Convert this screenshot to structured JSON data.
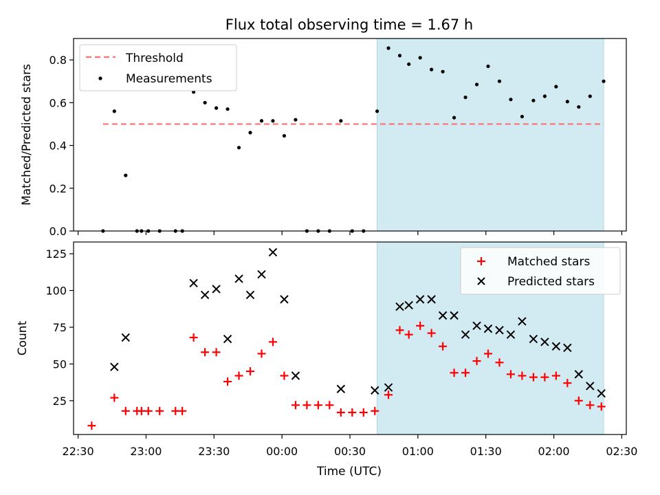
{
  "title": "Flux total observing time = 1.67 h",
  "colors": {
    "threshold": "#ff6f6f",
    "measurement": "#000000",
    "matched": "#ff0000",
    "predicted": "#000000",
    "highlight": "#add8e6"
  },
  "chart_data": [
    {
      "type": "scatter",
      "ylabel": "Matched/Predicted stars",
      "xlim": [
        "22:28",
        "02:32"
      ],
      "ylim": [
        0,
        0.9
      ],
      "yticks": [
        0.0,
        0.2,
        0.4,
        0.6,
        0.8
      ],
      "ytick_labels": [
        "0.0",
        "0.2",
        "0.4",
        "0.6",
        "0.8"
      ],
      "highlight_span": [
        "00:42",
        "02:22"
      ],
      "legend_position": "top-left",
      "legend": [
        "Threshold",
        "Measurements"
      ],
      "threshold": {
        "name": "Threshold",
        "value": 0.5,
        "x_range": [
          "22:41",
          "02:22"
        ]
      },
      "series": [
        {
          "name": "Measurements",
          "points": [
            [
              "22:41",
              0.0
            ],
            [
              "22:46",
              0.56
            ],
            [
              "22:51",
              0.26
            ],
            [
              "22:56",
              0.0
            ],
            [
              "22:58",
              0.0
            ],
            [
              "23:01",
              0.0
            ],
            [
              "23:06",
              0.0
            ],
            [
              "23:13",
              0.0
            ],
            [
              "23:16",
              0.0
            ],
            [
              "23:21",
              0.65
            ],
            [
              "23:26",
              0.6
            ],
            [
              "23:31",
              0.575
            ],
            [
              "23:36",
              0.57
            ],
            [
              "23:41",
              0.39
            ],
            [
              "23:46",
              0.46
            ],
            [
              "23:51",
              0.515
            ],
            [
              "23:56",
              0.515
            ],
            [
              "00:01",
              0.445
            ],
            [
              "00:06",
              0.52
            ],
            [
              "00:11",
              0.0
            ],
            [
              "00:16",
              0.0
            ],
            [
              "00:21",
              0.0
            ],
            [
              "00:26",
              0.515
            ],
            [
              "00:31",
              0.0
            ],
            [
              "00:36",
              0.0
            ],
            [
              "00:42",
              0.56
            ],
            [
              "00:47",
              0.855
            ],
            [
              "00:52",
              0.82
            ],
            [
              "00:56",
              0.78
            ],
            [
              "01:01",
              0.81
            ],
            [
              "01:06",
              0.755
            ],
            [
              "01:11",
              0.745
            ],
            [
              "01:16",
              0.53
            ],
            [
              "01:21",
              0.625
            ],
            [
              "01:26",
              0.685
            ],
            [
              "01:31",
              0.77
            ],
            [
              "01:36",
              0.7
            ],
            [
              "01:41",
              0.615
            ],
            [
              "01:46",
              0.535
            ],
            [
              "01:51",
              0.61
            ],
            [
              "01:56",
              0.63
            ],
            [
              "02:01",
              0.675
            ],
            [
              "02:06",
              0.605
            ],
            [
              "02:11",
              0.58
            ],
            [
              "02:16",
              0.63
            ],
            [
              "02:22",
              0.7
            ]
          ]
        }
      ]
    },
    {
      "type": "scatter",
      "xlabel": "Time (UTC)",
      "ylabel": "Count",
      "xlim": [
        "22:28",
        "02:32"
      ],
      "ylim": [
        2,
        133
      ],
      "yticks": [
        25,
        50,
        75,
        100,
        125
      ],
      "ytick_labels": [
        "25",
        "50",
        "75",
        "100",
        "125"
      ],
      "xticks": [
        "22:30",
        "23:00",
        "23:30",
        "00:00",
        "00:30",
        "01:00",
        "01:30",
        "02:00",
        "02:30"
      ],
      "highlight_span": [
        "00:42",
        "02:22"
      ],
      "legend_position": "top-right",
      "legend": [
        "Matched stars",
        "Predicted stars"
      ],
      "series": [
        {
          "name": "Matched stars",
          "points": [
            [
              "22:36",
              8
            ],
            [
              "22:46",
              27
            ],
            [
              "22:51",
              18
            ],
            [
              "22:56",
              18
            ],
            [
              "22:58",
              18
            ],
            [
              "23:01",
              18
            ],
            [
              "23:06",
              18
            ],
            [
              "23:13",
              18
            ],
            [
              "23:16",
              18
            ],
            [
              "23:21",
              68
            ],
            [
              "23:26",
              58
            ],
            [
              "23:31",
              58
            ],
            [
              "23:36",
              38
            ],
            [
              "23:41",
              42
            ],
            [
              "23:46",
              45
            ],
            [
              "23:51",
              57
            ],
            [
              "23:56",
              65
            ],
            [
              "00:01",
              42
            ],
            [
              "00:06",
              22
            ],
            [
              "00:11",
              22
            ],
            [
              "00:16",
              22
            ],
            [
              "00:21",
              22
            ],
            [
              "00:26",
              17
            ],
            [
              "00:31",
              17
            ],
            [
              "00:36",
              17
            ],
            [
              "00:41",
              18
            ],
            [
              "00:47",
              29
            ],
            [
              "00:52",
              73
            ],
            [
              "00:56",
              70
            ],
            [
              "01:01",
              76
            ],
            [
              "01:06",
              71
            ],
            [
              "01:11",
              62
            ],
            [
              "01:16",
              44
            ],
            [
              "01:21",
              44
            ],
            [
              "01:26",
              52
            ],
            [
              "01:31",
              57
            ],
            [
              "01:36",
              51
            ],
            [
              "01:41",
              43
            ],
            [
              "01:46",
              42
            ],
            [
              "01:51",
              41
            ],
            [
              "01:56",
              41
            ],
            [
              "02:01",
              42
            ],
            [
              "02:06",
              37
            ],
            [
              "02:11",
              25
            ],
            [
              "02:16",
              22
            ],
            [
              "02:21",
              21
            ]
          ]
        },
        {
          "name": "Predicted stars",
          "points": [
            [
              "22:46",
              48
            ],
            [
              "22:51",
              68
            ],
            [
              "23:21",
              105
            ],
            [
              "23:26",
              97
            ],
            [
              "23:31",
              101
            ],
            [
              "23:36",
              67
            ],
            [
              "23:41",
              108
            ],
            [
              "23:46",
              97
            ],
            [
              "23:51",
              111
            ],
            [
              "23:56",
              126
            ],
            [
              "00:01",
              94
            ],
            [
              "00:06",
              42
            ],
            [
              "00:26",
              33
            ],
            [
              "00:41",
              32
            ],
            [
              "00:47",
              34
            ],
            [
              "00:52",
              89
            ],
            [
              "00:56",
              90
            ],
            [
              "01:01",
              94
            ],
            [
              "01:06",
              94
            ],
            [
              "01:11",
              83
            ],
            [
              "01:16",
              83
            ],
            [
              "01:21",
              70
            ],
            [
              "01:26",
              76
            ],
            [
              "01:31",
              74
            ],
            [
              "01:36",
              73
            ],
            [
              "01:41",
              70
            ],
            [
              "01:46",
              79
            ],
            [
              "01:51",
              67
            ],
            [
              "01:56",
              65
            ],
            [
              "02:01",
              62
            ],
            [
              "02:06",
              61
            ],
            [
              "02:11",
              43
            ],
            [
              "02:16",
              35
            ],
            [
              "02:21",
              30
            ]
          ]
        }
      ]
    }
  ]
}
